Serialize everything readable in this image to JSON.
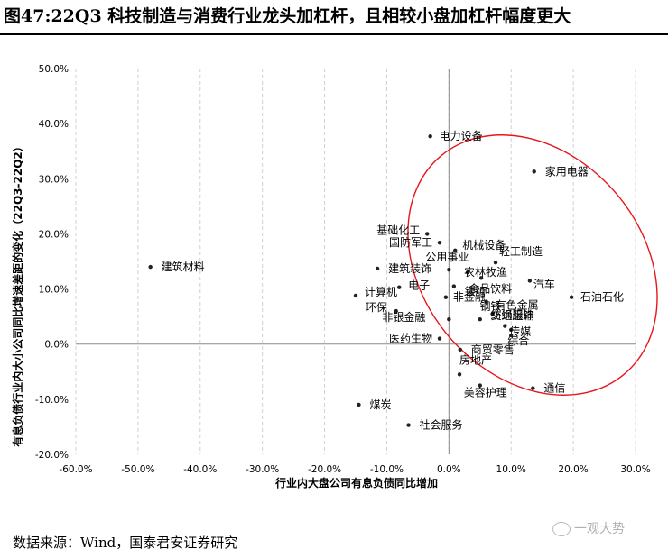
{
  "title": "图47:22Q3 科技制造与消费行业龙头加杠杆，且相较小盘加杠杆幅度更大",
  "source": "数据来源：Wind，国泰君安证券研究",
  "watermark": "一观大势",
  "chart_data": {
    "type": "scatter",
    "xlabel": "行业内大盘公司有息负债同比增加",
    "ylabel": "有息负债行业内大小公司同比增速差距的变化（22Q3-22Q2）",
    "xlim": [
      -0.6,
      0.3
    ],
    "ylim": [
      -0.2,
      0.5
    ],
    "x_ticks": [
      "-60.0%",
      "-50.0%",
      "-40.0%",
      "-30.0%",
      "-20.0%",
      "-10.0%",
      "0.0%",
      "10.0%",
      "20.0%",
      "30.0%"
    ],
    "y_ticks": [
      "50.0%",
      "40.0%",
      "30.0%",
      "20.0%",
      "10.0%",
      "0.0%",
      "-10.0%",
      "-20.0%"
    ],
    "x_tick_values": [
      -0.6,
      -0.5,
      -0.4,
      -0.3,
      -0.2,
      -0.1,
      0.0,
      0.1,
      0.2,
      0.3
    ],
    "y_tick_values": [
      0.5,
      0.4,
      0.3,
      0.2,
      0.1,
      0.0,
      -0.1,
      -0.2
    ],
    "grid": "vertical-dashed",
    "annotation": "red ellipse around upper-right cluster",
    "annotation_color": "#e8151b",
    "points": [
      {
        "label": "电力设备",
        "x": -0.03,
        "y": 0.377
      },
      {
        "label": "家用电器",
        "x": 0.137,
        "y": 0.313
      },
      {
        "label": "基础化工",
        "x": -0.035,
        "y": 0.2
      },
      {
        "label": "国防军工",
        "x": -0.015,
        "y": 0.184
      },
      {
        "label": "机械设备",
        "x": 0.01,
        "y": 0.17
      },
      {
        "label": "轻工制造",
        "x": 0.075,
        "y": 0.148
      },
      {
        "label": "公用事业",
        "x": 0.0,
        "y": 0.135
      },
      {
        "label": "建筑装饰",
        "x": -0.115,
        "y": 0.137
      },
      {
        "label": "建筑材料",
        "x": -0.48,
        "y": 0.14
      },
      {
        "label": "农林牧渔",
        "x": 0.03,
        "y": 0.13
      },
      {
        "label": "食品饮料",
        "x": 0.052,
        "y": 0.12
      },
      {
        "label": "汽车",
        "x": 0.13,
        "y": 0.115
      },
      {
        "label": "电子",
        "x": -0.08,
        "y": 0.103
      },
      {
        "label": "银行",
        "x": 0.008,
        "y": 0.105
      },
      {
        "label": "计算机",
        "x": -0.15,
        "y": 0.088
      },
      {
        "label": "非金融",
        "x": -0.005,
        "y": 0.085
      },
      {
        "label": "有色金属",
        "x": 0.06,
        "y": 0.077
      },
      {
        "label": "石油石化",
        "x": 0.197,
        "y": 0.085
      },
      {
        "label": "环保",
        "x": -0.085,
        "y": 0.06
      },
      {
        "label": "钢铁",
        "x": 0.07,
        "y": 0.055
      },
      {
        "label": "非银金融",
        "x": 0.0,
        "y": 0.045
      },
      {
        "label": "交通运输",
        "x": 0.05,
        "y": 0.045
      },
      {
        "label": "纺织服饰",
        "x": 0.09,
        "y": 0.033
      },
      {
        "label": "传媒",
        "x": 0.1,
        "y": 0.026
      },
      {
        "label": "综合",
        "x": 0.1,
        "y": 0.016
      },
      {
        "label": "医药生物",
        "x": -0.015,
        "y": 0.01
      },
      {
        "label": "商贸零售",
        "x": 0.018,
        "y": -0.01
      },
      {
        "label": "房地产",
        "x": 0.017,
        "y": -0.055
      },
      {
        "label": "通信",
        "x": 0.135,
        "y": -0.08
      },
      {
        "label": "美容护理",
        "x": 0.05,
        "y": -0.075
      },
      {
        "label": "煤炭",
        "x": -0.145,
        "y": -0.11
      },
      {
        "label": "社会服务",
        "x": -0.065,
        "y": -0.147
      }
    ]
  }
}
